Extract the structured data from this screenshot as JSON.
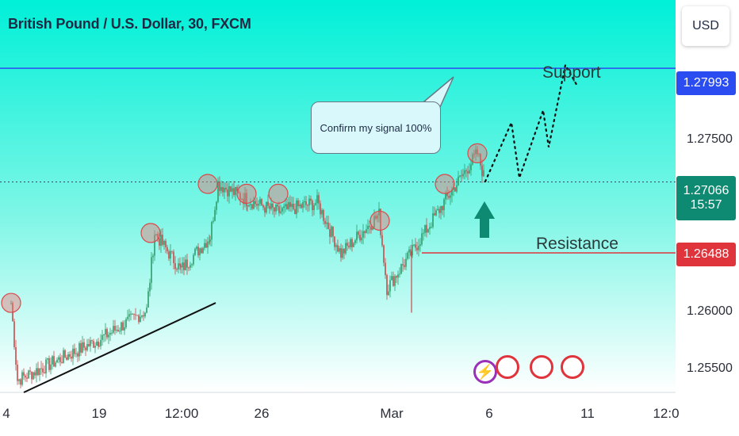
{
  "header": {
    "title": "British Pound / U.S. Dollar, 30, FXCM",
    "currency_button": "USD"
  },
  "price_tags": {
    "support": "1.27993",
    "current": "1.27066",
    "countdown": "15:57",
    "resistance": "1.26488"
  },
  "annotations": {
    "callout": "Confirm my signal 100%",
    "support_label": "Support",
    "resistance_label": "Resistance"
  },
  "colors": {
    "bg_top": "#00f0d8",
    "bg_bottom": "#ffffff",
    "support_line": "#2b4cf0",
    "resistance_line": "#e0343c",
    "current_tag": "#0e8a72",
    "arrow": "#0e8a72",
    "candle_up": "#2f9c6a",
    "candle_down": "#c94a4a"
  },
  "chart_data": {
    "type": "candlestick",
    "title": "British Pound / U.S. Dollar, 30, FXCM",
    "y_axis_ticks": [
      1.255,
      1.26,
      1.275
    ],
    "y_axis_labels": [
      "1.25500",
      "1.26000",
      "1.27500"
    ],
    "ylim": [
      1.2535,
      1.2855
    ],
    "x_axis_labels": [
      "4",
      "19",
      "12:00",
      "26",
      "Mar",
      "6",
      "11",
      "12:0"
    ],
    "support_level": 1.27993,
    "resistance_level": 1.26488,
    "current_price": 1.27066,
    "approx_close_path": [
      {
        "x": "4",
        "y": 1.2608
      },
      {
        "x": "",
        "y": 1.2545
      },
      {
        "x": "19",
        "y": 1.2578
      },
      {
        "x": "",
        "y": 1.2602
      },
      {
        "x": "",
        "y": 1.2665
      },
      {
        "x": "",
        "y": 1.2635
      },
      {
        "x": "12:00",
        "y": 1.2662
      },
      {
        "x": "",
        "y": 1.2705
      },
      {
        "x": "26",
        "y": 1.2692
      },
      {
        "x": "",
        "y": 1.2682
      },
      {
        "x": "",
        "y": 1.269
      },
      {
        "x": "",
        "y": 1.2648
      },
      {
        "x": "",
        "y": 1.268
      },
      {
        "x": "Mar",
        "y": 1.262
      },
      {
        "x": "",
        "y": 1.265
      },
      {
        "x": "",
        "y": 1.269
      },
      {
        "x": "6",
        "y": 1.273
      },
      {
        "x": "",
        "y": 1.2707
      }
    ],
    "projection_path": [
      1.2707,
      1.2755,
      1.271,
      1.2765,
      1.2735,
      1.2802,
      1.2785
    ],
    "marked_highs": [
      1.2608,
      1.2665,
      1.2705,
      1.2697,
      1.2697,
      1.2675,
      1.2705,
      1.273
    ],
    "trendline": [
      1.2535,
      1.2608
    ]
  }
}
